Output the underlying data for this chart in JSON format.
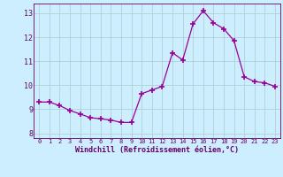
{
  "x": [
    0,
    1,
    2,
    3,
    4,
    5,
    6,
    7,
    8,
    9,
    10,
    11,
    12,
    13,
    14,
    15,
    16,
    17,
    18,
    19,
    20,
    21,
    22,
    23
  ],
  "y": [
    9.3,
    9.3,
    9.15,
    8.95,
    8.8,
    8.65,
    8.6,
    8.55,
    8.45,
    8.45,
    9.65,
    9.8,
    9.95,
    11.35,
    11.05,
    12.55,
    13.1,
    12.6,
    12.35,
    11.85,
    10.35,
    10.15,
    10.1,
    9.95
  ],
  "ylim": [
    7.8,
    13.4
  ],
  "xlim": [
    -0.5,
    23.5
  ],
  "yticks": [
    8,
    9,
    10,
    11,
    12,
    13
  ],
  "xticks": [
    0,
    1,
    2,
    3,
    4,
    5,
    6,
    7,
    8,
    9,
    10,
    11,
    12,
    13,
    14,
    15,
    16,
    17,
    18,
    19,
    20,
    21,
    22,
    23
  ],
  "xlabel": "Windchill (Refroidissement éolien,°C)",
  "line_color": "#990099",
  "marker": "+",
  "bg_color": "#cceeff",
  "grid_color": "#aacccc",
  "axis_color": "#660066",
  "label_color": "#660066",
  "tick_color": "#660066",
  "font_family": "monospace"
}
